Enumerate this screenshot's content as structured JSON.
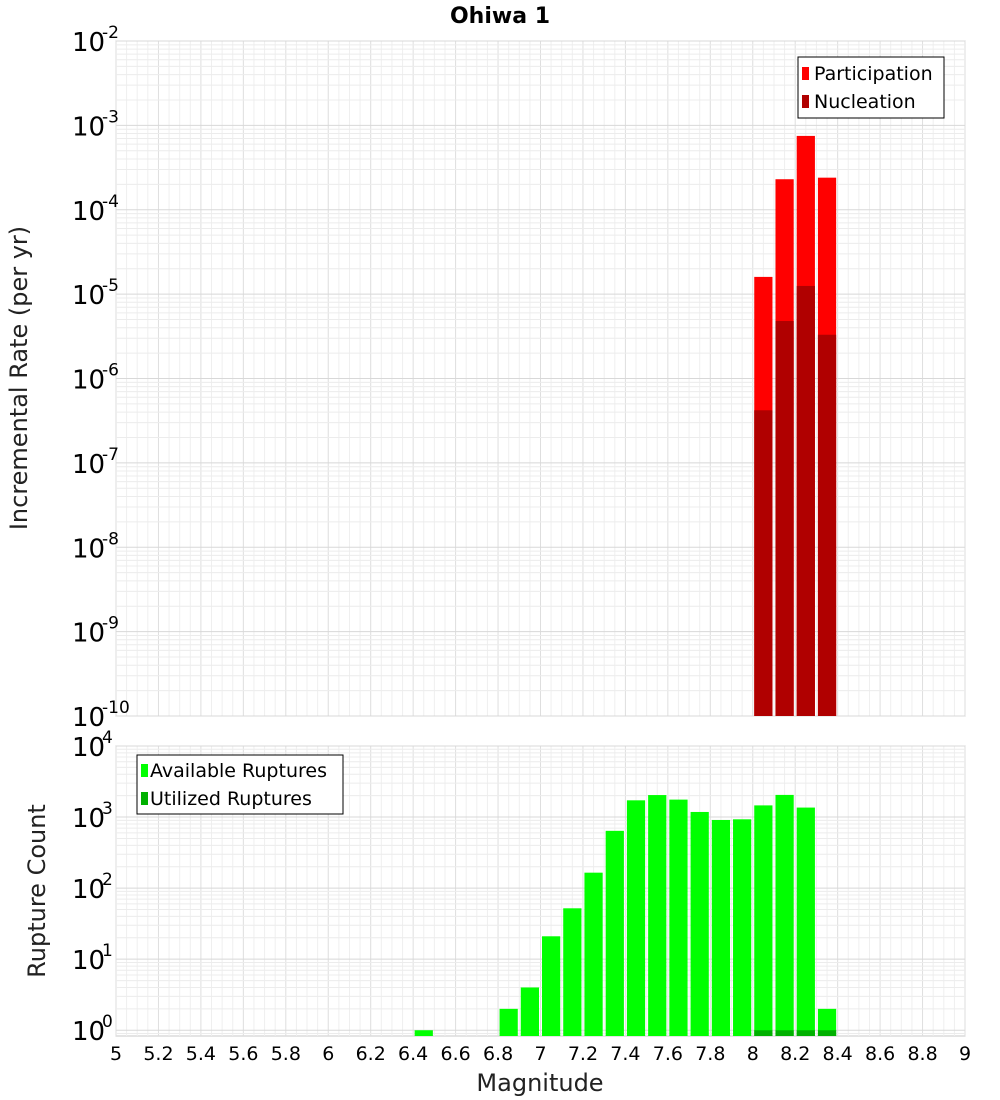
{
  "chart_data": [
    {
      "type": "bar",
      "title": "Ohiwa 1",
      "xlabel": "Magnitude",
      "ylabel": "Incremental Rate (per yr)",
      "yscale": "log",
      "xlim": [
        5,
        9
      ],
      "ylim": [
        1e-10,
        0.01
      ],
      "grid": true,
      "legend_position": "top-right",
      "bin_width": 0.1,
      "y_ticks": [
        {
          "base": "10",
          "exp": "-10",
          "value": 1e-10
        },
        {
          "base": "10",
          "exp": "-9",
          "value": 1e-09
        },
        {
          "base": "10",
          "exp": "-8",
          "value": 1e-08
        },
        {
          "base": "10",
          "exp": "-7",
          "value": 1e-07
        },
        {
          "base": "10",
          "exp": "-6",
          "value": 1e-06
        },
        {
          "base": "10",
          "exp": "-5",
          "value": 1e-05
        },
        {
          "base": "10",
          "exp": "-4",
          "value": 0.0001
        },
        {
          "base": "10",
          "exp": "-3",
          "value": 0.001
        },
        {
          "base": "10",
          "exp": "-2",
          "value": 0.01
        }
      ],
      "series": [
        {
          "name": "Participation",
          "color": "#ff0000",
          "x": [
            8.05,
            8.15,
            8.25,
            8.35
          ],
          "values": [
            1.6e-05,
            0.00023,
            0.00075,
            0.00024
          ]
        },
        {
          "name": "Nucleation",
          "color": "#b00000",
          "x": [
            8.05,
            8.15,
            8.25,
            8.35
          ],
          "values": [
            4.2e-07,
            4.8e-06,
            1.25e-05,
            3.3e-06
          ]
        }
      ]
    },
    {
      "type": "bar",
      "title": "",
      "xlabel": "Magnitude",
      "ylabel": "Rupture Count",
      "yscale": "log",
      "xlim": [
        5,
        9
      ],
      "ylim": [
        0.83,
        10000
      ],
      "grid": true,
      "legend_position": "top-left",
      "bin_width": 0.1,
      "y_ticks": [
        {
          "base": "10",
          "exp": "0",
          "value": 1
        },
        {
          "base": "10",
          "exp": "1",
          "value": 10
        },
        {
          "base": "10",
          "exp": "2",
          "value": 100
        },
        {
          "base": "10",
          "exp": "3",
          "value": 1000
        },
        {
          "base": "10",
          "exp": "4",
          "value": 10000
        }
      ],
      "x_ticks": [
        "5",
        "5.2",
        "5.4",
        "5.6",
        "5.8",
        "6",
        "6.2",
        "6.4",
        "6.6",
        "6.8",
        "7",
        "7.2",
        "7.4",
        "7.6",
        "7.8",
        "8",
        "8.2",
        "8.4",
        "8.6",
        "8.8",
        "9"
      ],
      "series": [
        {
          "name": "Available Ruptures",
          "color": "#00ff00",
          "x": [
            6.45,
            6.85,
            6.95,
            7.05,
            7.15,
            7.25,
            7.35,
            7.45,
            7.55,
            7.65,
            7.75,
            7.85,
            7.95,
            8.05,
            8.15,
            8.25,
            8.35
          ],
          "values": [
            1,
            2,
            4,
            21,
            52,
            165,
            640,
            1720,
            2040,
            1760,
            1180,
            910,
            930,
            1460,
            2050,
            1360,
            2
          ]
        },
        {
          "name": "Utilized Ruptures",
          "color": "#00b000",
          "x": [
            8.05,
            8.15,
            8.25,
            8.35
          ],
          "values": [
            1,
            1,
            1,
            1
          ]
        }
      ]
    }
  ]
}
